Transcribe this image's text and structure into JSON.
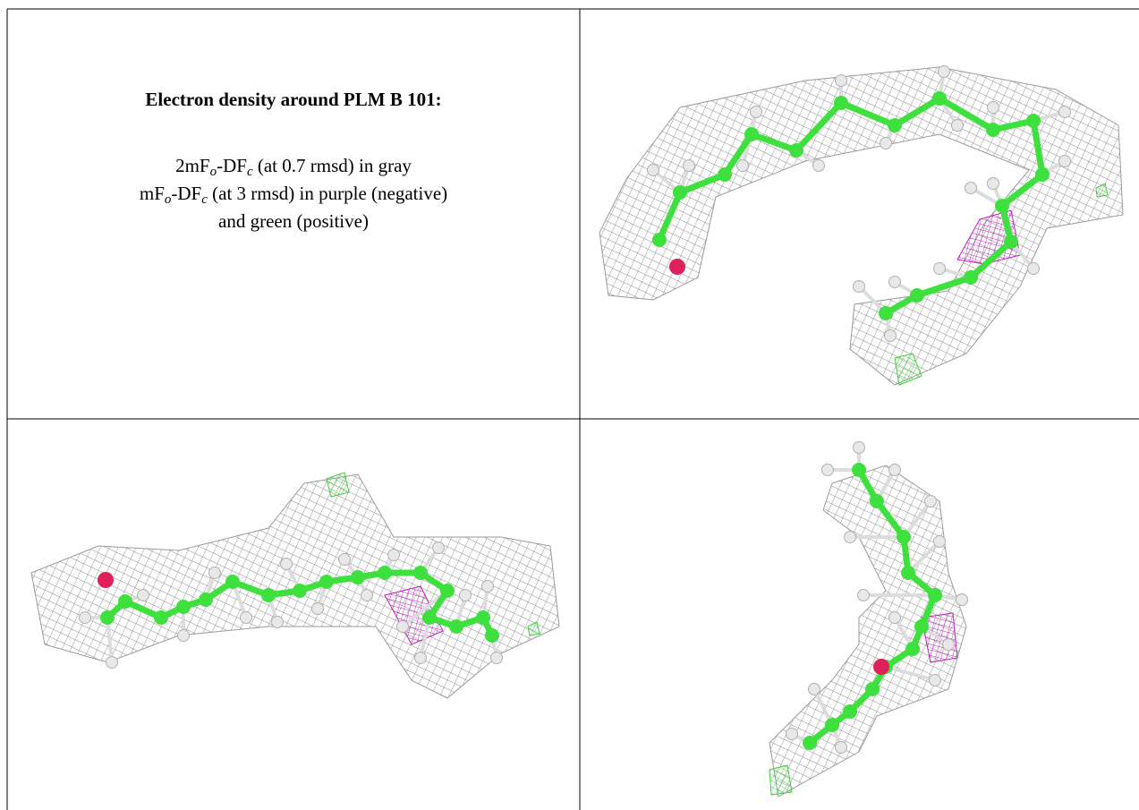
{
  "caption": {
    "title": "Electron density around PLM B 101:",
    "lines": [
      [
        "2mF",
        "o",
        "-DF",
        "c",
        " (at 0.7 rmsd) in gray"
      ],
      [
        "mF",
        "o",
        "-DF",
        "c",
        " (at 3 rmsd) in purple (negative)"
      ],
      [
        "and green (positive)"
      ]
    ]
  }
}
